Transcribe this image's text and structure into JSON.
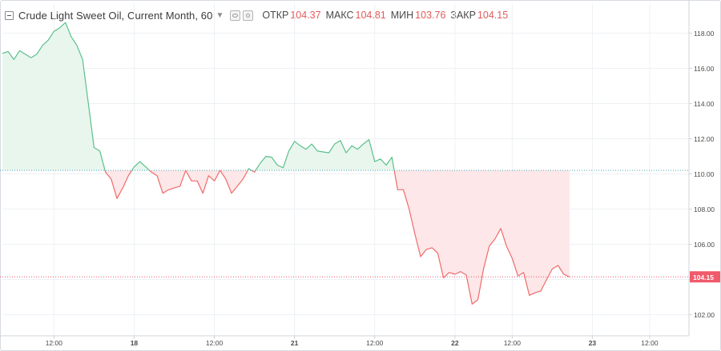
{
  "legend": {
    "symbol": "Crude Light Sweet Oil, Current Month, 60",
    "open_label": "ОТКР",
    "open_value": "104.37",
    "high_label": "МАКС",
    "high_value": "104.81",
    "low_label": "МИН",
    "low_value": "103.76",
    "close_label": "ЗАКР",
    "close_value": "104.15",
    "icons": [
      "collapse-icon",
      "chevron-down-icon",
      "eye-icon",
      "gear-icon"
    ]
  },
  "colors": {
    "up_line": "#5cc08a",
    "up_fill": "#e8f6ee",
    "down_line": "#ef6b6b",
    "down_fill": "#fde7e8",
    "baseline": "#4da6b8",
    "last_price": "#f05a6a",
    "grid": "#eef1f4",
    "axis_text": "#4a4a4a"
  },
  "chart_data": {
    "type": "area",
    "subtype": "baseline",
    "baseline_value": 110.2,
    "last_price": 104.15,
    "last_price_label": "104.15",
    "y_ticks": [
      "102.00",
      "104.00",
      "106.00",
      "108.00",
      "110.00",
      "112.00",
      "114.00",
      "116.00",
      "118.00"
    ],
    "y_tick_values": [
      102,
      104,
      106,
      108,
      110,
      112,
      114,
      116,
      118
    ],
    "ylim": [
      100.8,
      119.7
    ],
    "x_ticks": [
      "12:00",
      "18",
      "12:00",
      "21",
      "12:00",
      "22",
      "12:00",
      "23",
      "12:00"
    ],
    "x_tick_index": [
      9,
      23,
      37,
      51,
      65,
      79,
      89,
      103,
      113
    ],
    "x_range": [
      0,
      116
    ],
    "grid": true,
    "series": [
      {
        "values": [
          116.85,
          116.95,
          116.5,
          117.0,
          116.8,
          116.6,
          116.8,
          117.3,
          117.6,
          118.1,
          118.3,
          118.6,
          117.8,
          117.3,
          116.5,
          114.0,
          111.5,
          111.3,
          110.1,
          109.7,
          108.6,
          109.2,
          109.9,
          110.4,
          110.7,
          110.4,
          110.1,
          109.9,
          108.9,
          109.1,
          109.2,
          109.3,
          110.2,
          109.6,
          109.6,
          108.9,
          109.9,
          109.6,
          110.2,
          109.7,
          108.9,
          109.3,
          109.7,
          110.3,
          110.1,
          110.6,
          111.0,
          110.95,
          110.5,
          110.35,
          111.3,
          111.85,
          111.6,
          111.4,
          111.7,
          111.3,
          111.25,
          111.2,
          111.7,
          111.9,
          111.2,
          111.6,
          111.4,
          111.7,
          111.95,
          110.7,
          110.85,
          110.5,
          110.95,
          109.1,
          109.1,
          108.0,
          106.6,
          105.3,
          105.7,
          105.8,
          105.5,
          104.1,
          104.4,
          104.3,
          104.45,
          104.25,
          102.6,
          102.85,
          104.6,
          105.9,
          106.3,
          106.9,
          105.9,
          105.2,
          104.2,
          104.4,
          103.1,
          103.25,
          103.35,
          104.0,
          104.6,
          104.8,
          104.3,
          104.15
        ]
      }
    ]
  }
}
